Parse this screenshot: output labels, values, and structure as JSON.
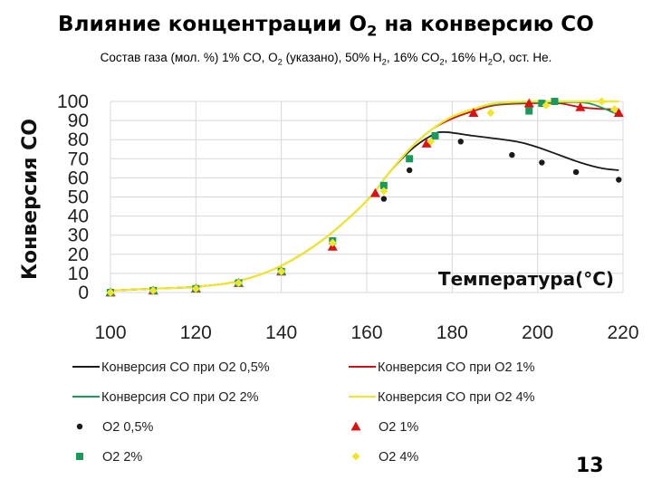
{
  "slide": {
    "title": "Влияние концентрации O2 на конверсию CO",
    "subtitle": "Состав газа (мол. %) 1% CO, O2 (указано), 50% H2, 16% CO2, 16% H2O, ост. He.",
    "number": "13"
  },
  "colors": {
    "o2_05": "#1a1a1a",
    "o2_1": "#cc1111",
    "o2_2": "#1a9a5a",
    "o2_4": "#f2e62a",
    "grid": "#d8d8d8"
  },
  "chart_data": {
    "type": "scatter",
    "title": "",
    "xlabel": "Температура(°C)",
    "ylabel": "Конверсия CO",
    "xlim": [
      100,
      220
    ],
    "ylim": [
      0,
      100
    ],
    "x_ticks": [
      "100",
      "120",
      "140",
      "160",
      "180",
      "200",
      "220"
    ],
    "y_ticks": [
      "0",
      "10",
      "20",
      "30",
      "40",
      "50",
      "60",
      "70",
      "80",
      "90",
      "100"
    ],
    "grid": true,
    "legend_position": "bottom",
    "lines": [
      {
        "name": "Конверсия CO при O2 0,5%",
        "color": "#1a1a1a",
        "points": [
          [
            100,
            1
          ],
          [
            110,
            2
          ],
          [
            120,
            3
          ],
          [
            130,
            6
          ],
          [
            140,
            14
          ],
          [
            150,
            28
          ],
          [
            160,
            48
          ],
          [
            165,
            62
          ],
          [
            170,
            74
          ],
          [
            175,
            82
          ],
          [
            178,
            84
          ],
          [
            185,
            82
          ],
          [
            195,
            79
          ],
          [
            200,
            76
          ],
          [
            205,
            72
          ],
          [
            210,
            68
          ],
          [
            215,
            65
          ],
          [
            219,
            64
          ]
        ]
      },
      {
        "name": "Конверсия CO при O2 1%",
        "color": "#cc1111",
        "points": [
          [
            100,
            1
          ],
          [
            110,
            2
          ],
          [
            120,
            3
          ],
          [
            130,
            6
          ],
          [
            140,
            14
          ],
          [
            150,
            28
          ],
          [
            160,
            48
          ],
          [
            165,
            62
          ],
          [
            170,
            75
          ],
          [
            175,
            85
          ],
          [
            180,
            91
          ],
          [
            185,
            95
          ],
          [
            190,
            98
          ],
          [
            198,
            99
          ],
          [
            205,
            99
          ],
          [
            210,
            97
          ],
          [
            215,
            96
          ],
          [
            219,
            96
          ]
        ]
      },
      {
        "name": "Конверсия CO при O2 2%",
        "color": "#1a9a5a",
        "points": [
          [
            100,
            1
          ],
          [
            110,
            2
          ],
          [
            120,
            3
          ],
          [
            130,
            6
          ],
          [
            140,
            14
          ],
          [
            150,
            28
          ],
          [
            160,
            48
          ],
          [
            165,
            62
          ],
          [
            170,
            75
          ],
          [
            175,
            85
          ],
          [
            180,
            92
          ],
          [
            185,
            96
          ],
          [
            190,
            98.5
          ],
          [
            198,
            99.5
          ],
          [
            205,
            99.5
          ],
          [
            212,
            99
          ],
          [
            219,
            93
          ]
        ]
      },
      {
        "name": "Конверсия CO при O2 4%",
        "color": "#f2e62a",
        "points": [
          [
            100,
            1
          ],
          [
            110,
            2
          ],
          [
            120,
            3
          ],
          [
            130,
            6
          ],
          [
            140,
            14
          ],
          [
            150,
            28
          ],
          [
            160,
            48
          ],
          [
            165,
            62
          ],
          [
            170,
            75
          ],
          [
            175,
            85
          ],
          [
            180,
            92
          ],
          [
            185,
            96
          ],
          [
            190,
            99
          ],
          [
            198,
            100
          ],
          [
            205,
            100
          ],
          [
            212,
            100
          ],
          [
            219,
            100
          ]
        ]
      }
    ],
    "markers": [
      {
        "name": "O2 0,5%",
        "shape": "circle",
        "color": "#1a1a1a",
        "points": [
          [
            100,
            0
          ],
          [
            110,
            1
          ],
          [
            120,
            2
          ],
          [
            130,
            5
          ],
          [
            140,
            11
          ],
          [
            152,
            26
          ],
          [
            164,
            49
          ],
          [
            170,
            64
          ],
          [
            182,
            79
          ],
          [
            194,
            72
          ],
          [
            201,
            68
          ],
          [
            209,
            63
          ],
          [
            219,
            59
          ]
        ]
      },
      {
        "name": "O2 1%",
        "shape": "triangle",
        "color": "#dd1111",
        "points": [
          [
            100,
            0
          ],
          [
            110,
            1
          ],
          [
            120,
            2
          ],
          [
            130,
            5
          ],
          [
            140,
            11
          ],
          [
            152,
            24
          ],
          [
            162,
            52
          ],
          [
            174,
            78
          ],
          [
            185,
            94
          ],
          [
            198,
            99
          ],
          [
            210,
            97
          ],
          [
            219,
            94
          ]
        ]
      },
      {
        "name": "O2 2%",
        "shape": "square",
        "color": "#1a9a5a",
        "points": [
          [
            100,
            0
          ],
          [
            110,
            1
          ],
          [
            120,
            2
          ],
          [
            130,
            5
          ],
          [
            140,
            11
          ],
          [
            152,
            27
          ],
          [
            164,
            56
          ],
          [
            170,
            70
          ],
          [
            176,
            82
          ],
          [
            198,
            95
          ],
          [
            201,
            99
          ],
          [
            204,
            100
          ]
        ]
      },
      {
        "name": "O2 4%",
        "shape": "diamond",
        "color": "#f2e62a",
        "points": [
          [
            100,
            0
          ],
          [
            110,
            1
          ],
          [
            120,
            2
          ],
          [
            130,
            5
          ],
          [
            140,
            11
          ],
          [
            152,
            26
          ],
          [
            164,
            53
          ],
          [
            175,
            79
          ],
          [
            189,
            94
          ],
          [
            202,
            98
          ],
          [
            215,
            100
          ],
          [
            218,
            96
          ]
        ]
      }
    ]
  }
}
